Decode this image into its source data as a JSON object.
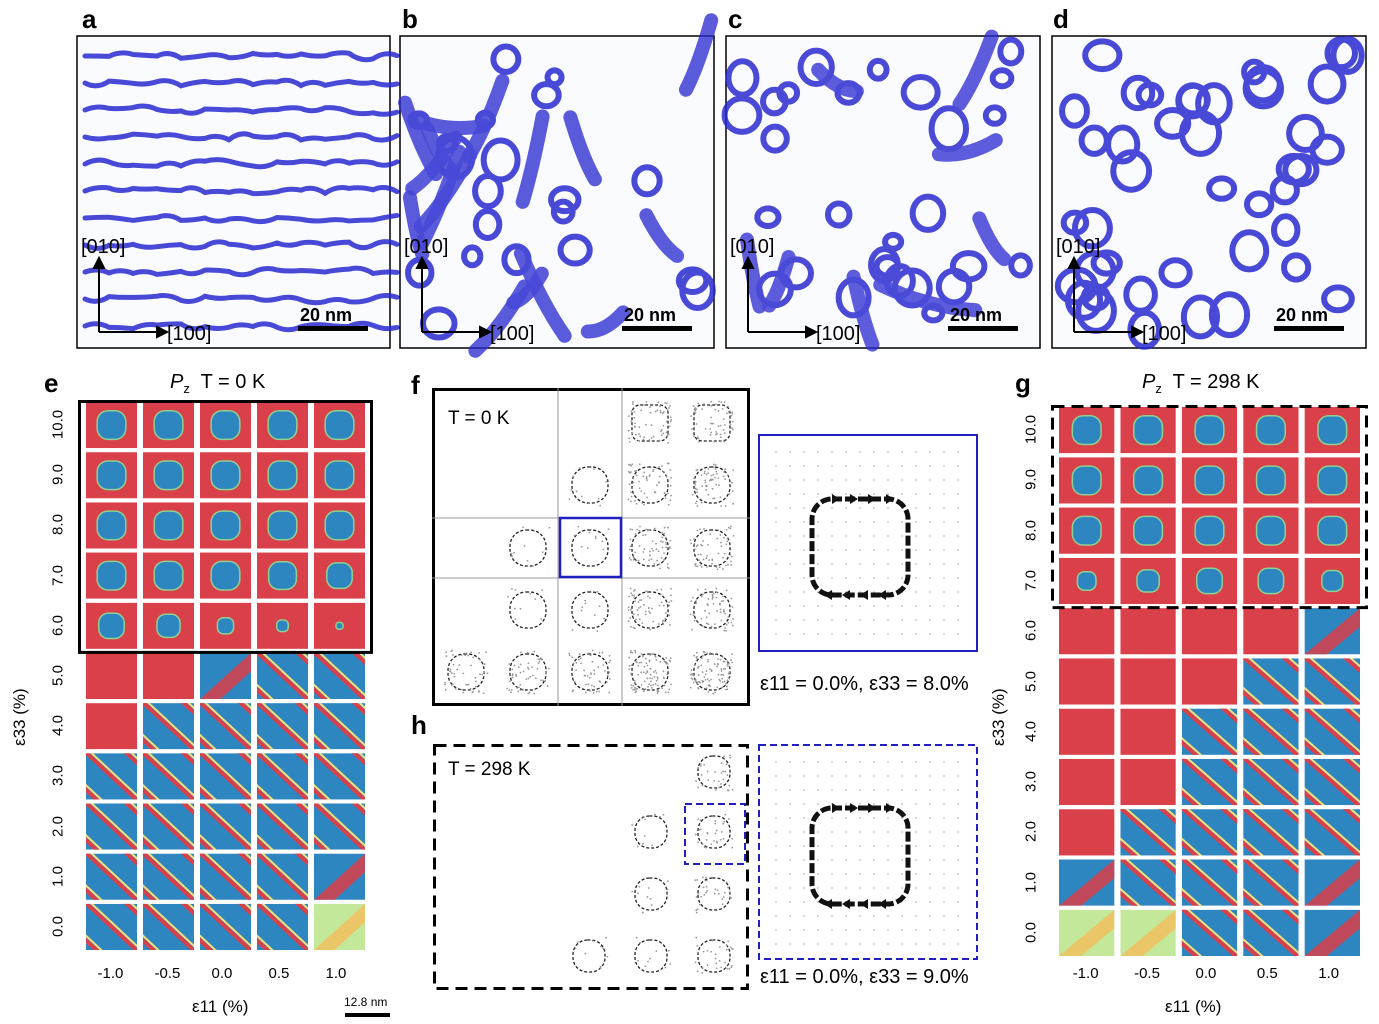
{
  "panels": {
    "a": {
      "letter": "a"
    },
    "b": {
      "letter": "b"
    },
    "c": {
      "letter": "c"
    },
    "d": {
      "letter": "d"
    },
    "e": {
      "letter": "e"
    },
    "f": {
      "letter": "f"
    },
    "g": {
      "letter": "g"
    },
    "h": {
      "letter": "h"
    }
  },
  "domain_maps": {
    "axis_y": "[010]",
    "axis_x": "[100]",
    "scale_bar": "20 nm"
  },
  "panel_e": {
    "title_symbol": "P",
    "title_sub": "z",
    "title_temp": "T = 0 K",
    "ylabel": "ε33 (%)",
    "xlabel": "ε11 (%)",
    "scale_bar": "12.8 nm"
  },
  "panel_g": {
    "title_symbol": "P",
    "title_sub": "z",
    "title_temp": "T = 298 K",
    "ylabel": "ε33 (%)",
    "xlabel": "ε11 (%)"
  },
  "strain": {
    "eps11": [
      "-1.0",
      "-0.5",
      "0.0",
      "0.5",
      "1.0"
    ],
    "eps33": [
      "10.0",
      "9.0",
      "8.0",
      "7.0",
      "6.0",
      "5.0",
      "4.0",
      "3.0",
      "2.0",
      "1.0",
      "0.0"
    ]
  },
  "panel_f": {
    "temp": "T = 0 K",
    "caption": "ε11 = 0.0%,  ε33 = 8.0%"
  },
  "panel_h": {
    "temp": "T = 298 K",
    "caption": "ε11 = 0.0%,  ε33 = 9.0%"
  },
  "colors": {
    "red": "#d9404a",
    "blue": "#2e86c1",
    "stripe_blue": "#2a2ad0",
    "outline_f": "#2020c0"
  }
}
